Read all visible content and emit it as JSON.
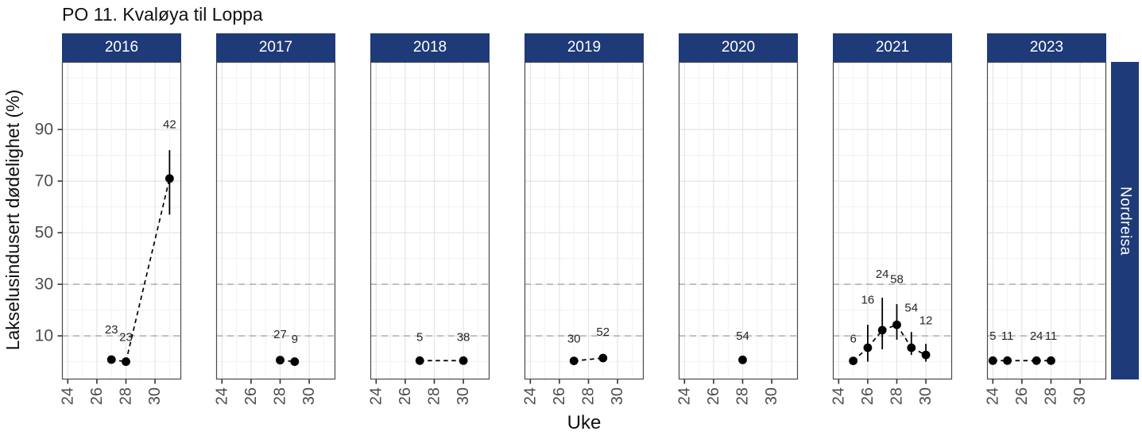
{
  "title": "PO 11. Kvaløya til Loppa",
  "row_label": "Nordreisa",
  "x_axis": {
    "title": "Uke"
  },
  "y_axis": {
    "title": "Lakselusindusert dødelighet (%)"
  },
  "colors": {
    "strip_fill": "#1e3a78",
    "strip_text": "#ffffff",
    "grid_major": "#e4e4e4",
    "grid_minor": "#f1f1f1",
    "threshold": "#a6a6a6",
    "panel_border": "#4a4a4a",
    "tick_mark": "#333333",
    "tick_text": "#4d4d4d",
    "point": "#000000",
    "data_label": "#262626"
  },
  "chart_data": {
    "type": "scatter",
    "title": "PO 11. Kvaløya til Loppa",
    "xlabel": "Uke",
    "ylabel": "Lakselusindusert dødelighet (%)",
    "facet_row_label": "Nordreisa",
    "x_ticks": [
      24,
      26,
      28,
      30
    ],
    "x_minor_weeks": [
      24,
      25,
      26,
      27,
      28,
      29,
      30,
      31
    ],
    "xlim": [
      23.6,
      31.8
    ],
    "y_ticks": [
      10,
      30,
      50,
      70,
      90
    ],
    "y_gridlines": [
      0,
      10,
      20,
      30,
      40,
      50,
      60,
      70,
      80,
      90,
      100,
      110
    ],
    "ylim": [
      -6.9,
      116.2
    ],
    "threshold_lines": [
      10,
      30
    ],
    "grid": true,
    "legend": "none",
    "panels": [
      {
        "year": "2016",
        "points": [
          {
            "week": 27,
            "value": 0.8,
            "lo": null,
            "hi": null,
            "label": "23",
            "label_y": 12.5
          },
          {
            "week": 28,
            "value": 0.0,
            "lo": null,
            "hi": null,
            "label": "23",
            "label_y": 9.5
          },
          {
            "week": 31,
            "value": 71,
            "lo": 57,
            "hi": 82,
            "label": "42",
            "label_y": 92
          }
        ]
      },
      {
        "year": "2017",
        "points": [
          {
            "week": 28,
            "value": 0.6,
            "lo": null,
            "hi": null,
            "label": "27",
            "label_y": 10.6
          },
          {
            "week": 29,
            "value": 0.0,
            "lo": null,
            "hi": null,
            "label": "9",
            "label_y": 8.8
          }
        ]
      },
      {
        "year": "2018",
        "points": [
          {
            "week": 27,
            "value": 0.4,
            "lo": null,
            "hi": null,
            "label": "5",
            "label_y": 9.5
          },
          {
            "week": 30,
            "value": 0.4,
            "lo": null,
            "hi": null,
            "label": "38",
            "label_y": 9.5
          }
        ]
      },
      {
        "year": "2019",
        "points": [
          {
            "week": 27,
            "value": 0.3,
            "lo": null,
            "hi": null,
            "label": "30",
            "label_y": 9
          },
          {
            "week": 29,
            "value": 1.4,
            "lo": null,
            "hi": null,
            "label": "52",
            "label_y": 11.5
          }
        ]
      },
      {
        "year": "2020",
        "points": [
          {
            "week": 28,
            "value": 0.7,
            "lo": null,
            "hi": null,
            "label": "54",
            "label_y": 10
          }
        ]
      },
      {
        "year": "2021",
        "points": [
          {
            "week": 25,
            "value": 0.3,
            "lo": null,
            "hi": null,
            "label": "6",
            "label_y": 9
          },
          {
            "week": 26,
            "value": 5.4,
            "lo": 0,
            "hi": 14.3,
            "label": "16",
            "label_y": 24
          },
          {
            "week": 27,
            "value": 12.2,
            "lo": 4.8,
            "hi": 24.8,
            "label": "24",
            "label_y": 34
          },
          {
            "week": 28,
            "value": 14.3,
            "lo": 8.5,
            "hi": 22.3,
            "label": "58",
            "label_y": 32
          },
          {
            "week": 29,
            "value": 5.4,
            "lo": 2.6,
            "hi": 11.5,
            "label": "54",
            "label_y": 21
          },
          {
            "week": 30,
            "value": 2.6,
            "lo": 0,
            "hi": 6.9,
            "label": "12",
            "label_y": 16
          }
        ]
      },
      {
        "year": "2023",
        "points": [
          {
            "week": 24,
            "value": 0.4,
            "lo": null,
            "hi": null,
            "label": "5",
            "label_y": 10
          },
          {
            "week": 25,
            "value": 0.4,
            "lo": null,
            "hi": null,
            "label": "11",
            "label_y": 10
          },
          {
            "week": 27,
            "value": 0.4,
            "lo": null,
            "hi": null,
            "label": "24",
            "label_y": 10
          },
          {
            "week": 28,
            "value": 0.4,
            "lo": null,
            "hi": null,
            "label": "11",
            "label_y": 10
          }
        ]
      }
    ]
  }
}
